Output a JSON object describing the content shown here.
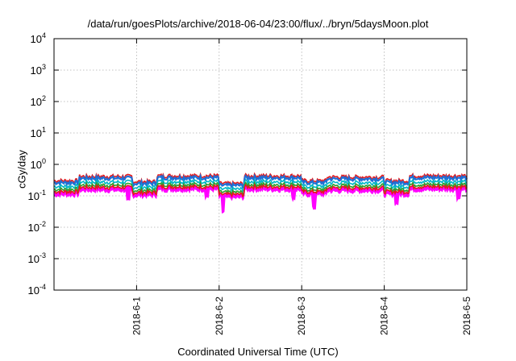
{
  "chart_data": {
    "type": "line",
    "title": "/data/run/goesPlots/archive/2018-06-04/23:00/flux/../bryn/5daysMoon.plot",
    "xlabel": "Coordinated Universal Time (UTC)",
    "ylabel": "cGy/day",
    "yscale": "log",
    "ylim": [
      0.0001,
      10000
    ],
    "y_ticks": [
      {
        "base": "10",
        "exp": "-4"
      },
      {
        "base": "10",
        "exp": "-3"
      },
      {
        "base": "10",
        "exp": "-2"
      },
      {
        "base": "10",
        "exp": "-1"
      },
      {
        "base": "10",
        "exp": "0"
      },
      {
        "base": "10",
        "exp": "1"
      },
      {
        "base": "10",
        "exp": "2"
      },
      {
        "base": "10",
        "exp": "3"
      },
      {
        "base": "10",
        "exp": "4"
      }
    ],
    "x_ticks": [
      "2018-6-1",
      "2018-6-2",
      "2018-6-3",
      "2018-6-4",
      "2018-6-5"
    ],
    "x_tick_days": [
      1,
      2,
      3,
      4,
      5
    ],
    "xlim_days": [
      0,
      5
    ],
    "grid": true,
    "colors": {
      "red": "#e41a1c",
      "blue": "#1f6fd6",
      "cyan": "#00b8c8",
      "green": "#2ca02c",
      "magenta": "#ff00ff",
      "grid": "#b0b0b0"
    },
    "series": [
      {
        "color": "red",
        "style": "line",
        "approx_level": 0.38
      },
      {
        "color": "blue",
        "style": "line",
        "approx_level": 0.33
      },
      {
        "color": "cyan",
        "style": "line",
        "approx_level": 0.25
      },
      {
        "color": "green",
        "style": "line",
        "approx_level": 0.2
      },
      {
        "color": "red",
        "style": "line",
        "approx_level": 0.17
      },
      {
        "color": "magenta",
        "style": "fill",
        "approx_level": 0.13
      }
    ],
    "features": [
      {
        "day_start": 0.0,
        "day_end": 0.3,
        "factor": 0.8
      },
      {
        "day_start": 0.3,
        "day_end": 0.95,
        "factor": 1.1
      },
      {
        "day_start": 0.95,
        "day_end": 1.25,
        "factor": 0.75
      },
      {
        "day_start": 1.25,
        "day_end": 2.0,
        "factor": 1.15
      },
      {
        "day_start": 2.0,
        "day_end": 2.3,
        "factor": 0.65
      },
      {
        "day_start": 2.3,
        "day_end": 3.0,
        "factor": 1.15
      },
      {
        "day_start": 3.0,
        "day_end": 3.3,
        "factor": 0.8
      },
      {
        "day_start": 3.3,
        "day_end": 4.0,
        "factor": 1.05
      },
      {
        "day_start": 4.0,
        "day_end": 4.3,
        "factor": 0.8
      },
      {
        "day_start": 4.3,
        "day_end": 5.0,
        "factor": 1.15
      }
    ],
    "dips": [
      {
        "day": 0.9,
        "value": 0.06
      },
      {
        "day": 1.85,
        "value": 0.08
      },
      {
        "day": 2.05,
        "value": 0.045
      },
      {
        "day": 2.9,
        "value": 0.07
      },
      {
        "day": 3.15,
        "value": 0.05
      },
      {
        "day": 4.15,
        "value": 0.07
      },
      {
        "day": 4.9,
        "value": 0.07
      }
    ]
  }
}
